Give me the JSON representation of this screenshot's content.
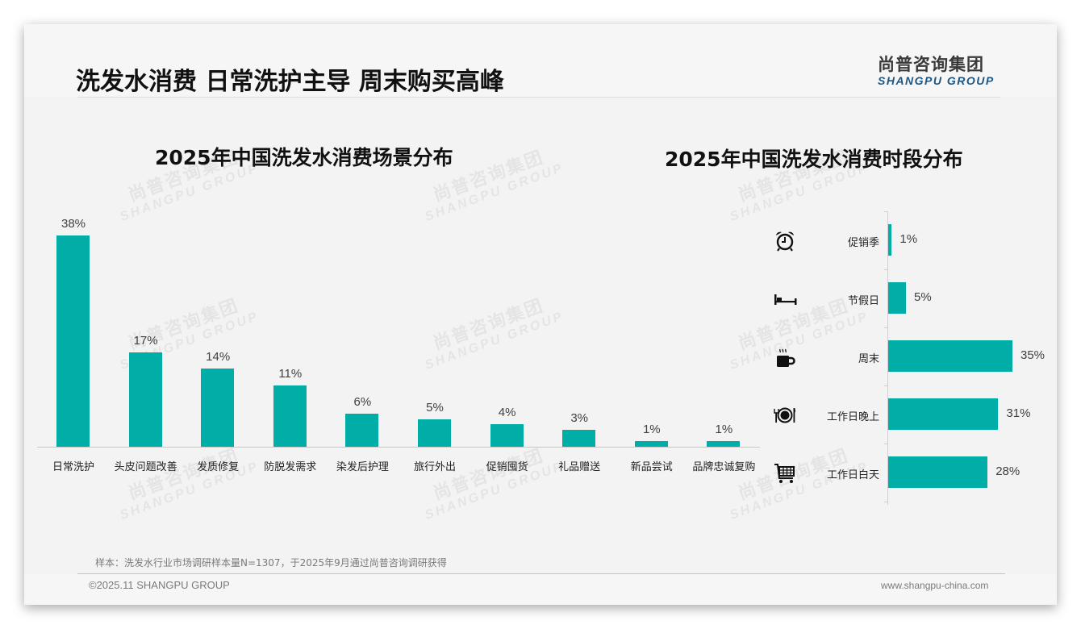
{
  "page": {
    "title": "洗发水消费 日常洗护主导 周末购买高峰",
    "logo_cn": "尚普咨询集团",
    "logo_en": "SHANGPU GROUP",
    "watermark_cn": "尚普咨询集团",
    "watermark_en": "SHANGPU GROUP",
    "note": "样本：洗发水行业市场调研样本量N=1307，于2025年9月通过尚普咨询调研获得",
    "copyright": "©2025.11 SHANGPU GROUP",
    "website": "www.shangpu-china.com",
    "accent_color": "#00ada7"
  },
  "chart_data": [
    {
      "type": "bar",
      "orientation": "vertical",
      "title": "2025年中国洗发水消费场景分布",
      "categories": [
        "日常洗护",
        "头皮问题改善",
        "发质修复",
        "防脱发需求",
        "染发后护理",
        "旅行外出",
        "促销囤货",
        "礼品赠送",
        "新品尝试",
        "品牌忠诚复购"
      ],
      "values": [
        38,
        17,
        14,
        11,
        6,
        5,
        4,
        3,
        1,
        1
      ],
      "labels": [
        "38%",
        "17%",
        "14%",
        "11%",
        "6%",
        "5%",
        "4%",
        "3%",
        "1%",
        "1%"
      ],
      "unit": "%",
      "xlabel": "",
      "ylabel": "",
      "grid": false,
      "legend": "none",
      "color": "#00ada7"
    },
    {
      "type": "bar",
      "orientation": "horizontal",
      "title": "2025年中国洗发水消费时段分布",
      "categories": [
        "促销季",
        "节假日",
        "周末",
        "工作日晚上",
        "工作日白天"
      ],
      "values": [
        1,
        5,
        35,
        31,
        28
      ],
      "labels": [
        "1%",
        "5%",
        "35%",
        "31%",
        "28%"
      ],
      "icons": [
        "alarm-clock-icon",
        "bed-icon",
        "coffee-mug-icon",
        "plate-cutlery-icon",
        "shopping-cart-icon"
      ],
      "unit": "%",
      "grid": false,
      "legend": "none",
      "color": "#00ada7"
    }
  ]
}
